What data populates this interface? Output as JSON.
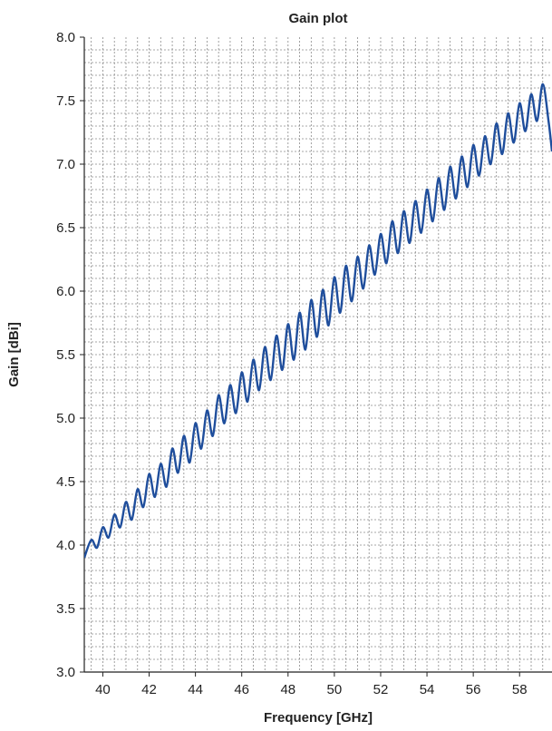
{
  "chart_data": {
    "type": "line",
    "title": "Gain plot",
    "xlabel": "Frequency [GHz]",
    "ylabel": "Gain [dBi]",
    "xlim": [
      39.2,
      59.4
    ],
    "ylim": [
      3.0,
      8.0
    ],
    "x_ticks": [
      40,
      42,
      44,
      46,
      48,
      50,
      52,
      54,
      56,
      58
    ],
    "x_tick_labels": [
      "40",
      "42",
      "44",
      "46",
      "48",
      "50",
      "52",
      "54",
      "56",
      "58"
    ],
    "y_ticks": [
      3.0,
      3.5,
      4.0,
      4.5,
      5.0,
      5.5,
      6.0,
      6.5,
      7.0,
      7.5,
      8.0
    ],
    "y_tick_labels": [
      "3.0",
      "3.5",
      "4.0",
      "4.5",
      "5.0",
      "5.5",
      "6.0",
      "6.5",
      "7.0",
      "7.5",
      "8.0"
    ],
    "grid": true,
    "line_color": "#1f4e9c",
    "series": [
      {
        "x": [
          39.2,
          39.5,
          39.75,
          40.0,
          40.25,
          40.5,
          40.75,
          41.0,
          41.25,
          41.5,
          41.75,
          42.0,
          42.25,
          42.5,
          42.75,
          43.0,
          43.25,
          43.5,
          43.75,
          44.0,
          44.25,
          44.5,
          44.75,
          45.0,
          45.25,
          45.5,
          45.75,
          46.0,
          46.25,
          46.5,
          46.75,
          47.0,
          47.25,
          47.5,
          47.75,
          48.0,
          48.25,
          48.5,
          48.75,
          49.0,
          49.25,
          49.5,
          49.75,
          50.0,
          50.25,
          50.5,
          50.75,
          51.0,
          51.25,
          51.5,
          51.75,
          52.0,
          52.25,
          52.5,
          52.75,
          53.0,
          53.25,
          53.5,
          53.75,
          54.0,
          54.25,
          54.5,
          54.75,
          55.0,
          55.25,
          55.5,
          55.75,
          56.0,
          56.25,
          56.5,
          56.75,
          57.0,
          57.25,
          57.5,
          57.75,
          58.0,
          58.25,
          58.5,
          58.75,
          59.0,
          59.25,
          59.4
        ],
        "y": [
          3.9,
          4.04,
          3.98,
          4.14,
          4.06,
          4.24,
          4.14,
          4.34,
          4.2,
          4.44,
          4.3,
          4.56,
          4.38,
          4.64,
          4.46,
          4.76,
          4.57,
          4.86,
          4.65,
          4.96,
          4.76,
          5.06,
          4.86,
          5.18,
          4.96,
          5.26,
          5.04,
          5.36,
          5.13,
          5.46,
          5.22,
          5.56,
          5.3,
          5.65,
          5.38,
          5.74,
          5.46,
          5.83,
          5.54,
          5.93,
          5.64,
          6.01,
          5.73,
          6.11,
          5.83,
          6.2,
          5.92,
          6.27,
          6.02,
          6.36,
          6.13,
          6.45,
          6.22,
          6.55,
          6.3,
          6.63,
          6.38,
          6.71,
          6.46,
          6.8,
          6.55,
          6.89,
          6.64,
          6.98,
          6.73,
          7.06,
          6.82,
          7.15,
          6.91,
          7.22,
          7.0,
          7.32,
          7.08,
          7.4,
          7.17,
          7.48,
          7.26,
          7.55,
          7.34,
          7.63,
          7.34,
          7.1
        ]
      }
    ]
  }
}
